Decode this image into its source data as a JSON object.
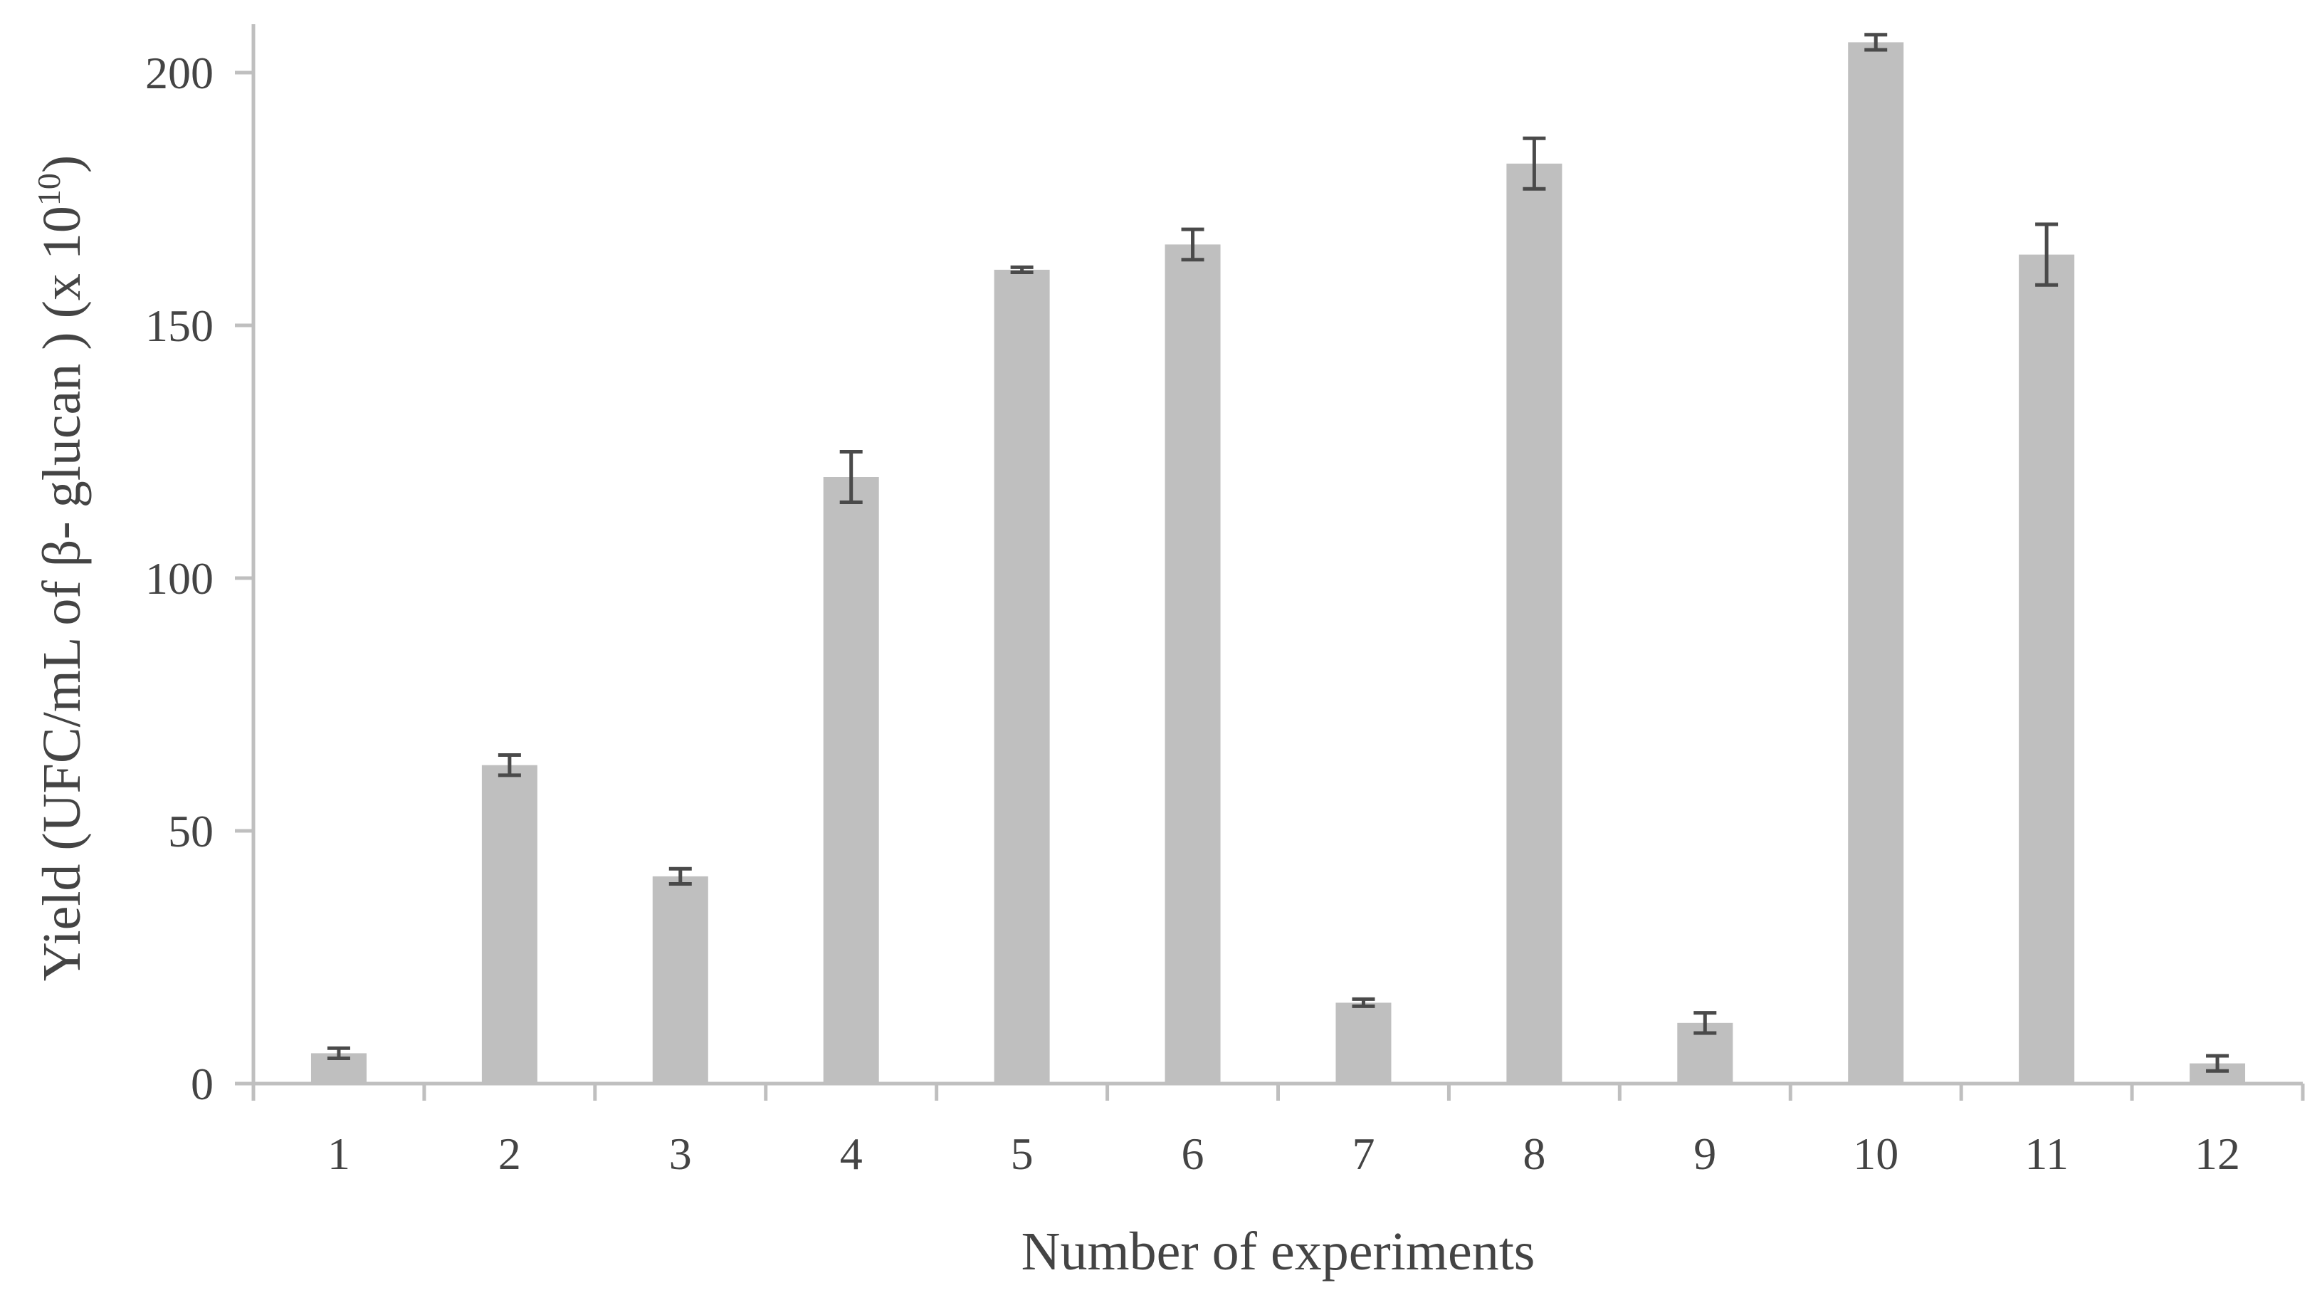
{
  "chart_data": {
    "type": "bar",
    "xlabel": "Number of experiments",
    "ylabel_main": "Yield (UFC/mL of β- glucan ) (x 10",
    "ylabel_sup": "10",
    "ylabel_end": ")",
    "ylim": [
      0,
      200
    ],
    "yticks": [
      "0",
      "50",
      "100",
      "150",
      "200"
    ],
    "ytick_values": [
      0,
      50,
      100,
      150,
      200
    ],
    "categories": [
      "1",
      "2",
      "3",
      "4",
      "5",
      "6",
      "7",
      "8",
      "9",
      "10",
      "11",
      "12"
    ],
    "values": [
      6,
      63,
      41,
      120,
      161,
      166,
      16,
      182,
      12,
      206,
      164,
      4
    ],
    "errors": [
      1,
      2,
      1.5,
      5,
      0.5,
      3,
      0.7,
      5,
      2,
      1.5,
      6,
      1.5
    ],
    "bar_color": "#bfbfbf",
    "error_color": "#4a4a4a",
    "axis_color": "#bfbfbf",
    "grid": false,
    "legend": "none"
  }
}
